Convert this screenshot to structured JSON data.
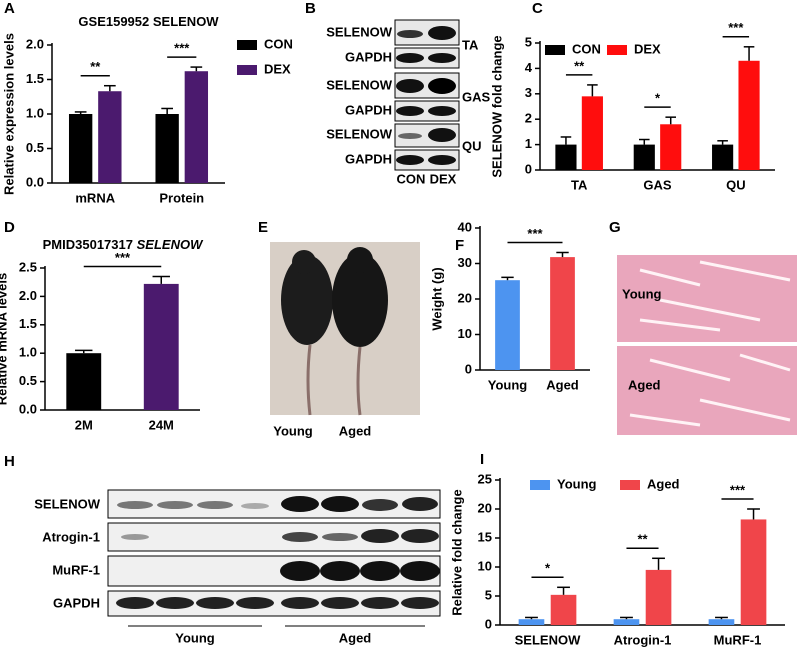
{
  "chart_data": [
    {
      "type": "bar",
      "panel": "A",
      "title": "GSE159952 SELENOW",
      "ylabel": "Relative expression levels",
      "categories": [
        "mRNA",
        "Protein"
      ],
      "series": [
        {
          "name": "CON",
          "color": "#000000",
          "values": [
            1.0,
            1.0
          ],
          "errors": [
            0.03,
            0.08
          ]
        },
        {
          "name": "DEX",
          "color": "#4b1a6e",
          "values": [
            1.33,
            1.62
          ],
          "errors": [
            0.08,
            0.06
          ]
        }
      ],
      "ylim": [
        0,
        2
      ],
      "yticks": [
        {
          "value": 0,
          "label": "0.0"
        },
        0.5,
        {
          "value": 1,
          "label": "1.0"
        },
        1.5,
        {
          "value": 2,
          "label": "2.0"
        }
      ],
      "legend": "right",
      "significance": [
        "**",
        "***"
      ]
    },
    {
      "type": "bar",
      "panel": "C",
      "ylabel": "SELENOW fold change",
      "categories": [
        "TA",
        "GAS",
        "QU"
      ],
      "series": [
        {
          "name": "CON",
          "color": "#000000",
          "values": [
            1.0,
            1.0,
            1.0
          ],
          "errors": [
            0.3,
            0.2,
            0.15
          ]
        },
        {
          "name": "DEX",
          "color": "#ff0d0d",
          "values": [
            2.9,
            1.8,
            4.3
          ],
          "errors": [
            0.45,
            0.28,
            0.55
          ]
        }
      ],
      "ylim": [
        0,
        5
      ],
      "yticks": [
        0,
        1,
        2,
        3,
        4,
        5
      ],
      "legend": "top-left",
      "significance": [
        "**",
        "*",
        "***"
      ]
    },
    {
      "type": "bar",
      "panel": "D",
      "title": "PMID35017317",
      "title_gene": "SELENOW",
      "ylabel": "Relative mRNA levels",
      "categories": [
        "2M",
        "24M"
      ],
      "values": [
        1.0,
        2.22
      ],
      "errors": [
        0.05,
        0.13
      ],
      "colors": [
        "#000000",
        "#4b1a6e"
      ],
      "ylim": [
        0,
        2.5
      ],
      "yticks": [
        {
          "value": 0,
          "label": "0.0"
        },
        0.5,
        {
          "value": 1,
          "label": "1.0"
        },
        1.5,
        {
          "value": 2,
          "label": "2.0"
        },
        2.5
      ],
      "significance": [
        "***"
      ]
    },
    {
      "type": "bar",
      "panel": "F",
      "ylabel": "Weight (g)",
      "categories": [
        "Young",
        "Aged"
      ],
      "values": [
        25.3,
        31.8
      ],
      "errors": [
        0.8,
        1.3
      ],
      "colors": [
        "#4d94f0",
        "#f0454a"
      ],
      "ylim": [
        0,
        40
      ],
      "yticks": [
        0,
        10,
        20,
        30,
        40
      ],
      "significance": [
        "***"
      ]
    },
    {
      "type": "bar",
      "panel": "I",
      "ylabel": "Relative fold change",
      "categories": [
        "SELENOW",
        "Atrogin-1",
        "MuRF-1"
      ],
      "series": [
        {
          "name": "Young",
          "color": "#4d94f0",
          "values": [
            1.0,
            1.0,
            1.0
          ],
          "errors": [
            0.3,
            0.3,
            0.3
          ]
        },
        {
          "name": "Aged",
          "color": "#f0454a",
          "values": [
            5.2,
            9.5,
            18.2
          ],
          "errors": [
            1.3,
            2.0,
            1.8
          ]
        }
      ],
      "ylim": [
        0,
        25
      ],
      "yticks": [
        0,
        5,
        10,
        15,
        20,
        25
      ],
      "legend": "top",
      "significance": [
        "*",
        "**",
        "***"
      ]
    }
  ],
  "blot_B": {
    "panel": "B",
    "rows": [
      "SELENOW",
      "GAPDH",
      "SELENOW",
      "GAPDH",
      "SELENOW",
      "GAPDH"
    ],
    "tissues": [
      "TA",
      "GAS",
      "QU"
    ],
    "lanes": [
      "CON",
      "DEX"
    ]
  },
  "photo_E": {
    "panel": "E",
    "labels": [
      "Young",
      "Aged"
    ]
  },
  "histology_G": {
    "panel": "G",
    "labels": [
      "Young",
      "Aged"
    ]
  },
  "blot_H": {
    "panel": "H",
    "rows": [
      "SELENOW",
      "Atrogin-1",
      "MuRF-1",
      "GAPDH"
    ],
    "groups": [
      "Young",
      "Aged"
    ]
  }
}
